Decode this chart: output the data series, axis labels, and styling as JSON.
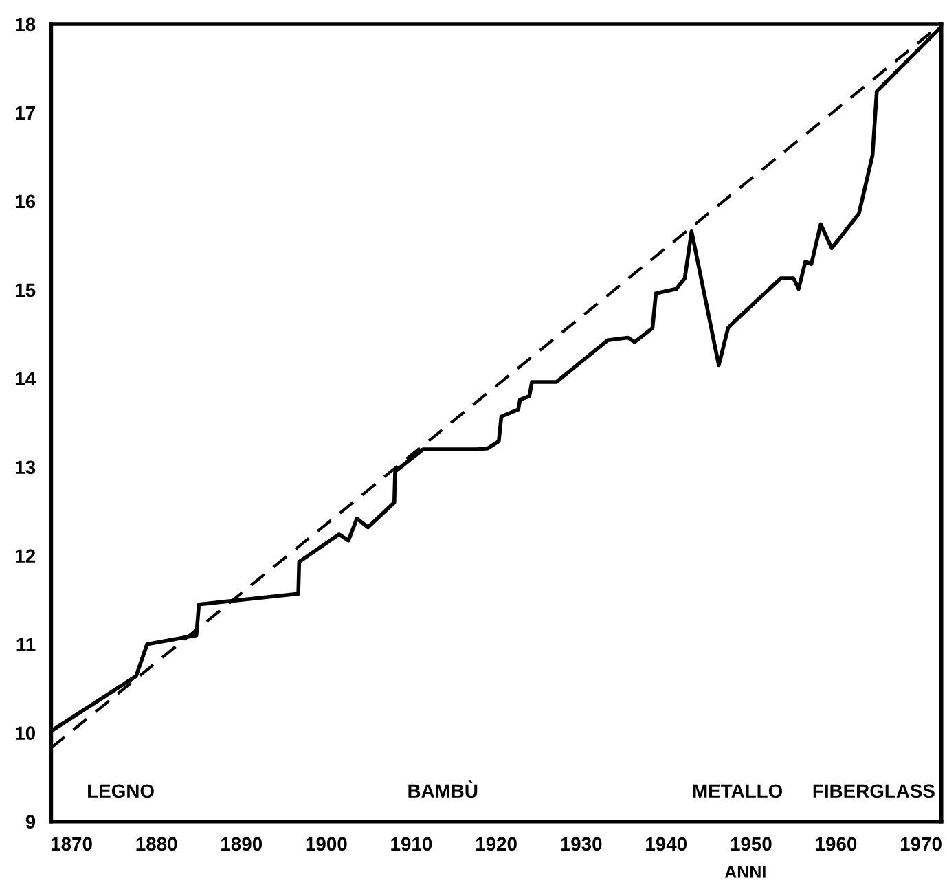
{
  "chart_data": {
    "type": "line",
    "xlabel": "ANNI",
    "xlim": [
      1867.6,
      1972.4
    ],
    "ylim": [
      9,
      18
    ],
    "xticks": [
      1870,
      1880,
      1890,
      1900,
      1910,
      1920,
      1930,
      1940,
      1950,
      1960,
      1970
    ],
    "yticks": [
      9,
      10,
      11,
      12,
      13,
      14,
      15,
      16,
      17,
      18
    ],
    "grid": false,
    "legend": false,
    "annotations": [
      "LEGNO",
      "BAMBÙ",
      "METALLO",
      "FIBERGLASS"
    ],
    "series": [
      {
        "color": "#000000",
        "line_style": "solid",
        "x": [
          1867.6,
          1877.6,
          1878.9,
          1884.7,
          1885.0,
          1896.7,
          1896.8,
          1901.5,
          1902.6,
          1903.6,
          1904.9,
          1908.0,
          1908.1,
          1911.4,
          1917.7,
          1919.0,
          1920.3,
          1920.6,
          1922.6,
          1922.8,
          1923.9,
          1924.2,
          1927.1,
          1933.1,
          1935.5,
          1936.3,
          1938.4,
          1938.8,
          1941.2,
          1942.2,
          1943.0,
          1946.2,
          1947.3,
          1947.8,
          1953.5,
          1955.0,
          1955.6,
          1956.4,
          1957.1,
          1958.2,
          1959.5,
          1962.7,
          1964.3,
          1964.8,
          1972.4
        ],
        "values": [
          10.02,
          10.64,
          11.0,
          11.1,
          11.45,
          11.57,
          11.93,
          12.24,
          12.17,
          12.42,
          12.32,
          12.6,
          12.95,
          13.2,
          13.2,
          13.21,
          13.29,
          13.57,
          13.65,
          13.76,
          13.8,
          13.96,
          13.96,
          14.43,
          14.46,
          14.41,
          14.57,
          14.96,
          15.01,
          15.13,
          15.66,
          14.15,
          14.57,
          14.62,
          15.13,
          15.13,
          15.01,
          15.32,
          15.29,
          15.74,
          15.47,
          15.86,
          16.52,
          17.24,
          17.97
        ]
      },
      {
        "color": "#000000",
        "line_style": "dashed",
        "x": [
          1867.6,
          1972.4
        ],
        "values": [
          9.83,
          18.0
        ]
      }
    ]
  }
}
